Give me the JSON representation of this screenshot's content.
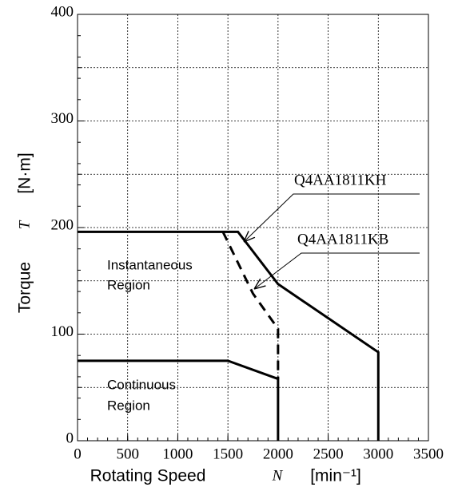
{
  "chart_data": {
    "type": "line",
    "xlabel": "Rotating Speed",
    "xsymbol": "N",
    "xunit": "[min⁻¹]",
    "ylabel": "Torque",
    "ysymbol": "T",
    "yunit": "[N·m]",
    "xlim": [
      0,
      3500
    ],
    "xticks": [
      0,
      500,
      1000,
      1500,
      2000,
      2500,
      3000,
      3500
    ],
    "ylim": [
      0,
      400
    ],
    "yticks": [
      0,
      100,
      200,
      300,
      400
    ],
    "ygrid": [
      50,
      150,
      250,
      350
    ],
    "grid": true,
    "series": [
      {
        "name": "Q4AA1811KH",
        "color": "#000000",
        "dash": false,
        "x": [
          0,
          1600,
          2000,
          3000,
          3000
        ],
        "values": [
          196,
          196,
          147,
          83,
          0
        ]
      },
      {
        "name": "Q4AA1811KB",
        "color": "#000000",
        "dash": true,
        "x": [
          1450,
          1750,
          2000,
          2000
        ],
        "values": [
          196,
          138,
          105,
          58
        ]
      },
      {
        "color": "#000000",
        "dash": false,
        "x": [
          0,
          1500,
          2000,
          2000
        ],
        "values": [
          75,
          75,
          58,
          0
        ]
      }
    ],
    "annotations": [
      "Instantaneous",
      "Region",
      "Continuous",
      "Region"
    ]
  }
}
